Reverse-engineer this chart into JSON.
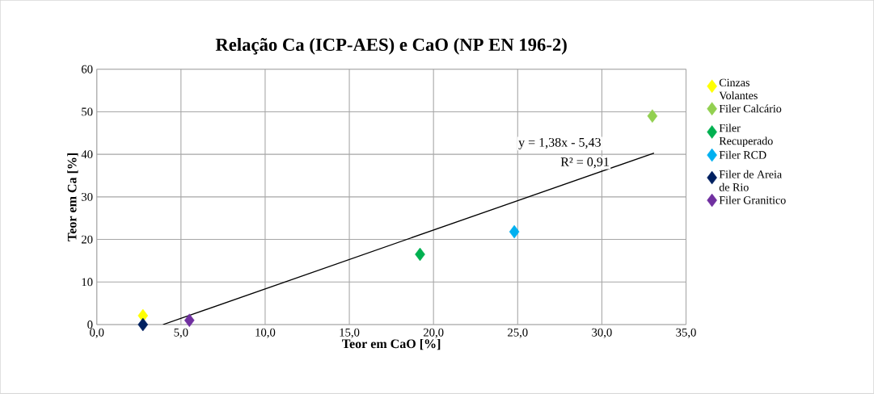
{
  "chart_data": {
    "type": "scatter",
    "title": "Relação Ca (ICP-AES) e CaO (NP EN 196-2)",
    "xlabel": "Teor em CaO [%]",
    "ylabel": "Teor em Ca [%]",
    "series": [
      {
        "name": "Cinzas Volantes",
        "color": "#ffff00",
        "x": [
          2.74
        ],
        "values": [
          2.1
        ]
      },
      {
        "name": "Filer Calcário",
        "color": "#92d050",
        "x": [
          33.0
        ],
        "values": [
          49.0
        ]
      },
      {
        "name": "Filer Recuperado",
        "color": "#00b050",
        "x": [
          19.2
        ],
        "values": [
          16.5
        ]
      },
      {
        "name": "Filer RCD",
        "color": "#00b0f0",
        "x": [
          24.8
        ],
        "values": [
          21.8
        ]
      },
      {
        "name": "Filer de Areia de Rio",
        "color": "#002060",
        "x": [
          2.74
        ],
        "values": [
          0
        ]
      },
      {
        "name": "Filer Granitico",
        "color": "#7030a0",
        "x": [
          5.5
        ],
        "values": [
          1.0
        ]
      },
      {
        "type": "line",
        "marker": "none",
        "color": "#000000",
        "x": [
          3.93,
          33.1
        ],
        "values": [
          0,
          40.3
        ]
      }
    ],
    "annotations": [
      "y = 1,38x - 5,43",
      "R² = 0,91"
    ],
    "xlim": [
      0,
      35
    ],
    "ylim": [
      0,
      60
    ],
    "xticks": [
      {
        "value": 0,
        "label": "0,0"
      },
      {
        "value": 5,
        "label": "5,0"
      },
      {
        "value": 10,
        "label": "10,0"
      },
      {
        "value": 15,
        "label": "15,0"
      },
      {
        "value": 20,
        "label": "20,0"
      },
      {
        "value": 25,
        "label": "25,0"
      },
      {
        "value": 30,
        "label": "30,0"
      },
      {
        "value": 35,
        "label": "35,0"
      }
    ],
    "yticks": [
      0,
      10,
      20,
      30,
      40,
      50,
      60
    ],
    "grid": true,
    "legend": "right",
    "marker": "diamond",
    "line_style": "solid"
  }
}
